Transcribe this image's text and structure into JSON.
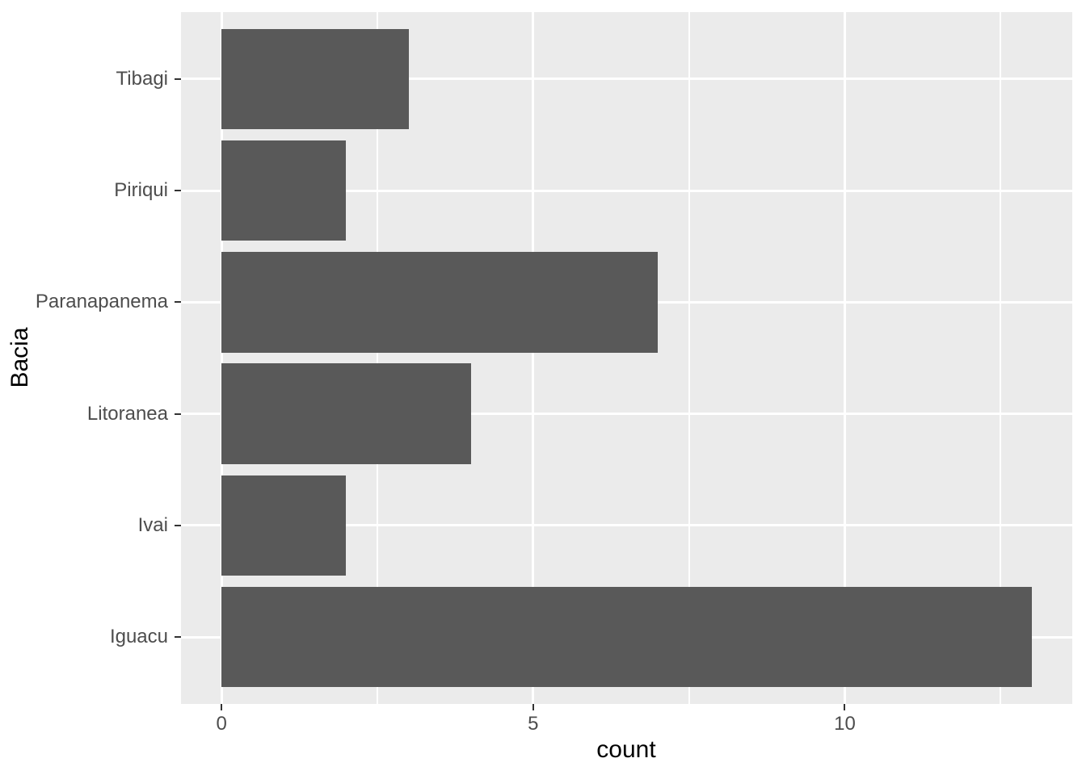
{
  "chart_data": {
    "type": "bar",
    "orientation": "horizontal",
    "title": "",
    "xlabel": "count",
    "ylabel": "Bacia",
    "categories": [
      "Tibagi",
      "Piriqui",
      "Paranapanema",
      "Litoranea",
      "Ivai",
      "Iguacu"
    ],
    "values": [
      3,
      2,
      7,
      4,
      2,
      13
    ],
    "x_tick_values": [
      0,
      5,
      10
    ],
    "x_tick_labels": [
      "0",
      "5",
      "10"
    ],
    "x_minor_gridlines": [
      2.5,
      7.5,
      12.5
    ],
    "xlim": [
      -0.65,
      13.65
    ],
    "bar_width_fraction": 0.9,
    "legend_position": "none",
    "colors": {
      "bar_fill": "#595959",
      "panel_background": "#EBEBEB",
      "gridline": "#FFFFFF",
      "axis_text": "#4D4D4D",
      "axis_title": "#000000",
      "tick_mark": "#333333",
      "figure_background": "#FFFFFF"
    }
  }
}
